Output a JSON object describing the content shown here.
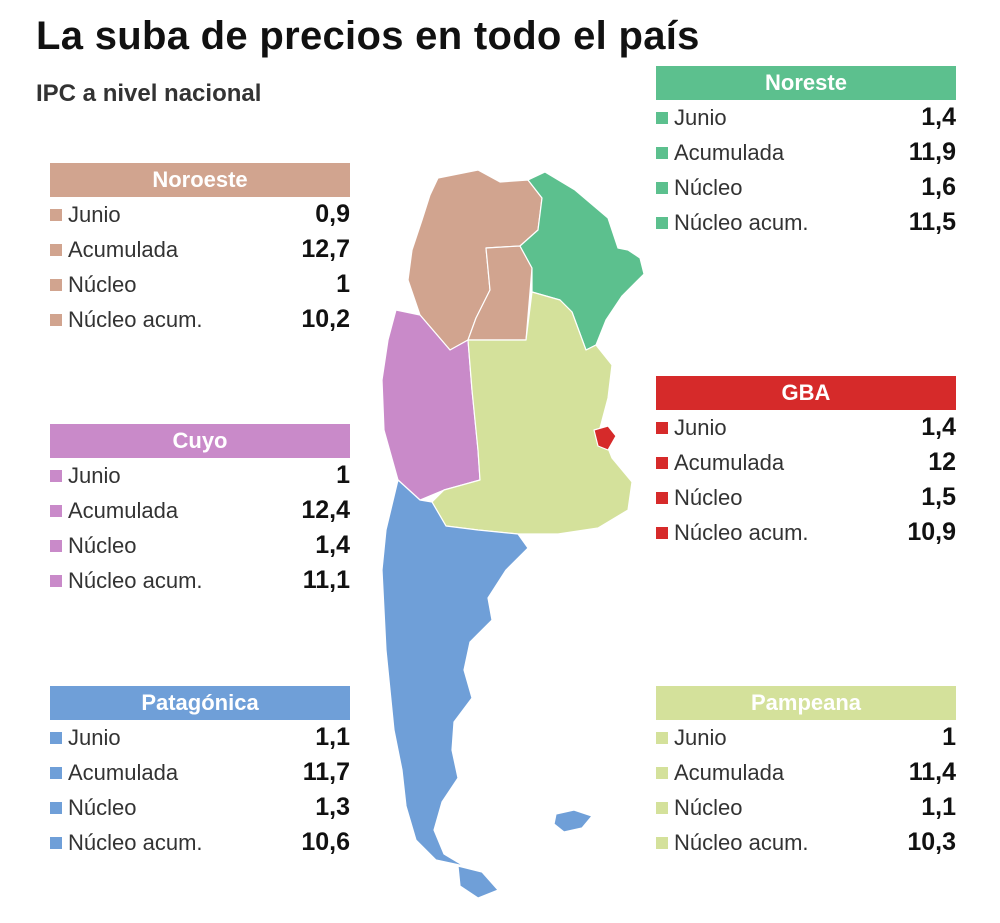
{
  "title": "La suba de precios en todo el país",
  "subtitle": "IPC a nivel nacional",
  "regions": {
    "noroeste": {
      "name": "Noroeste",
      "color": "#d1a48f",
      "rows": [
        {
          "label": "Junio",
          "value": "0,9"
        },
        {
          "label": "Acumulada",
          "value": "12,7"
        },
        {
          "label": "Núcleo",
          "value": "1"
        },
        {
          "label": "Núcleo acum.",
          "value": "10,2"
        }
      ]
    },
    "cuyo": {
      "name": "Cuyo",
      "color": "#c98ac9",
      "rows": [
        {
          "label": "Junio",
          "value": "1"
        },
        {
          "label": "Acumulada",
          "value": "12,4"
        },
        {
          "label": "Núcleo",
          "value": "1,4"
        },
        {
          "label": "Núcleo acum.",
          "value": "11,1"
        }
      ]
    },
    "patagonica": {
      "name": "Patagónica",
      "color": "#6f9fd8",
      "rows": [
        {
          "label": "Junio",
          "value": "1,1"
        },
        {
          "label": "Acumulada",
          "value": "11,7"
        },
        {
          "label": "Núcleo",
          "value": "1,3"
        },
        {
          "label": "Núcleo acum.",
          "value": "10,6"
        }
      ]
    },
    "noreste": {
      "name": "Noreste",
      "color": "#5cc08e",
      "rows": [
        {
          "label": "Junio",
          "value": "1,4"
        },
        {
          "label": "Acumulada",
          "value": "11,9"
        },
        {
          "label": "Núcleo",
          "value": "1,6"
        },
        {
          "label": "Núcleo acum.",
          "value": "11,5"
        }
      ]
    },
    "gba": {
      "name": "GBA",
      "color": "#d62a2a",
      "rows": [
        {
          "label": "Junio",
          "value": "1,4"
        },
        {
          "label": "Acumulada",
          "value": "12"
        },
        {
          "label": "Núcleo",
          "value": "1,5"
        },
        {
          "label": "Núcleo acum.",
          "value": "10,9"
        }
      ]
    },
    "pampeana": {
      "name": "Pampeana",
      "color": "#d4e19b",
      "rows": [
        {
          "label": "Junio",
          "value": "1"
        },
        {
          "label": "Acumulada",
          "value": "11,4"
        },
        {
          "label": "Núcleo",
          "value": "1,1"
        },
        {
          "label": "Núcleo acum.",
          "value": "10,3"
        }
      ]
    }
  }
}
